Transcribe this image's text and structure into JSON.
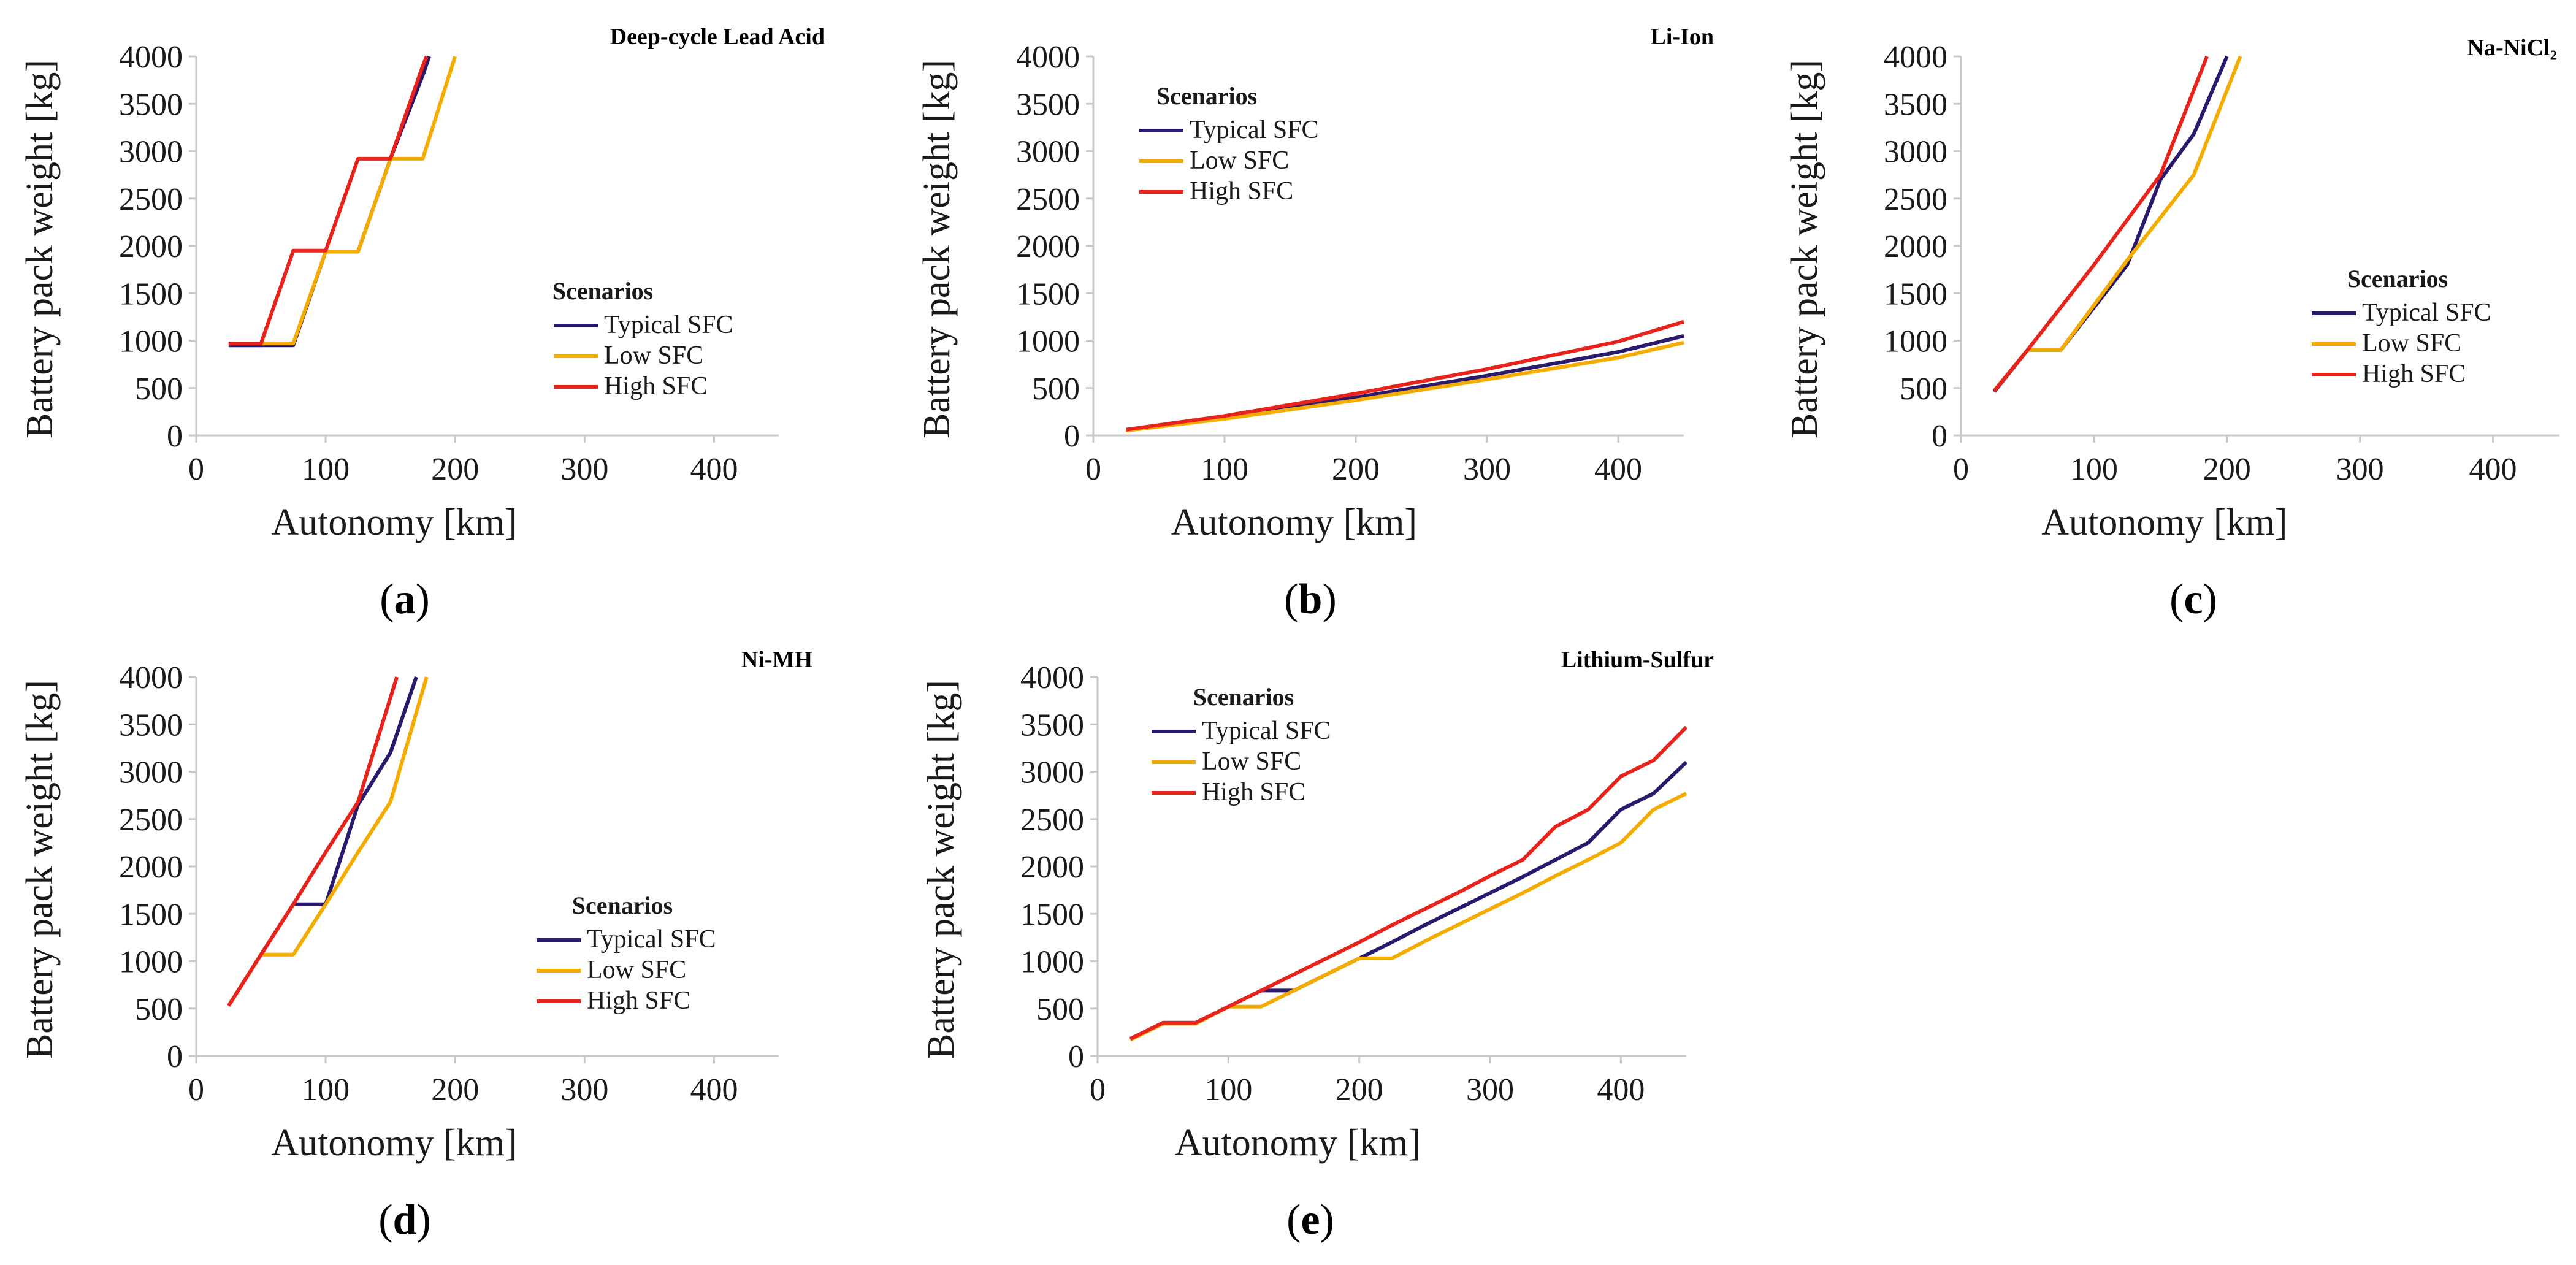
{
  "colors": {
    "typical": "#2a1a6e",
    "low": "#f5ac00",
    "high": "#e8231c",
    "axis": "#c8c8c8",
    "text": "#1a1a1a"
  },
  "shared": {
    "xlabel": "Autonomy [km]",
    "ylabel": "Battery pack weight [kg]",
    "legend_title": "Scenarios",
    "series_names": [
      "Typical SFC",
      "Low SFC",
      "High SFC"
    ]
  },
  "chart_data": [
    {
      "id": "a",
      "panel_label": "a",
      "type": "line",
      "title": "Deep-cycle Lead Acid",
      "xlabel": "Autonomy [km]",
      "ylabel": "Battery pack weight [kg]",
      "xlim": [
        0,
        450
      ],
      "ylim": [
        0,
        4000
      ],
      "xticks": [
        0,
        100,
        200,
        300,
        400
      ],
      "yticks": [
        0,
        500,
        1000,
        1500,
        2000,
        2500,
        3000,
        3500,
        4000
      ],
      "legend_position": "right-middle",
      "series": [
        {
          "name": "Typical SFC",
          "x": [
            25,
            50,
            75,
            100,
            125,
            150,
            175,
            180
          ],
          "y": [
            950,
            950,
            950,
            1940,
            1940,
            2920,
            3800,
            4000
          ]
        },
        {
          "name": "Low SFC",
          "x": [
            25,
            50,
            75,
            100,
            125,
            150,
            175,
            200
          ],
          "y": [
            970,
            970,
            970,
            1940,
            1940,
            2920,
            2920,
            4000
          ]
        },
        {
          "name": "High SFC",
          "x": [
            25,
            50,
            75,
            100,
            125,
            150,
            175,
            178
          ],
          "y": [
            970,
            970,
            1950,
            1950,
            2920,
            2920,
            3900,
            4000
          ]
        }
      ]
    },
    {
      "id": "b",
      "panel_label": "b",
      "type": "line",
      "title": "Li-Ion",
      "xlabel": "Autonomy [km]",
      "ylabel": "Battery pack weight [kg]",
      "xlim": [
        0,
        450
      ],
      "ylim": [
        0,
        4000
      ],
      "xticks": [
        0,
        100,
        200,
        300,
        400
      ],
      "yticks": [
        0,
        500,
        1000,
        1500,
        2000,
        2500,
        3000,
        3500,
        4000
      ],
      "legend_position": "top-left",
      "series": [
        {
          "name": "Typical SFC",
          "x": [
            25,
            100,
            200,
            300,
            400,
            450
          ],
          "y": [
            55,
            190,
            400,
            630,
            880,
            1050
          ]
        },
        {
          "name": "Low SFC",
          "x": [
            25,
            100,
            200,
            300,
            400,
            450
          ],
          "y": [
            50,
            175,
            370,
            590,
            820,
            980
          ]
        },
        {
          "name": "High SFC",
          "x": [
            25,
            100,
            200,
            300,
            400,
            450
          ],
          "y": [
            60,
            205,
            440,
            700,
            990,
            1200
          ]
        }
      ]
    },
    {
      "id": "c",
      "panel_label": "c",
      "type": "line",
      "title": "Na-NiCl₂",
      "xlabel": "Autonomy [km]",
      "ylabel": "Battery pack weight [kg]",
      "xlim": [
        0,
        450
      ],
      "ylim": [
        0,
        4000
      ],
      "xticks": [
        0,
        100,
        200,
        300,
        400
      ],
      "yticks": [
        0,
        500,
        1000,
        1500,
        2000,
        2500,
        3000,
        3500,
        4000
      ],
      "legend_position": "right-middle",
      "series": [
        {
          "name": "Typical SFC",
          "x": [
            25,
            50,
            75,
            125,
            150,
            175,
            200
          ],
          "y": [
            460,
            900,
            900,
            1800,
            2700,
            3180,
            4000
          ]
        },
        {
          "name": "Low SFC",
          "x": [
            25,
            50,
            75,
            125,
            175,
            210
          ],
          "y": [
            470,
            900,
            900,
            1850,
            2750,
            4000
          ]
        },
        {
          "name": "High SFC",
          "x": [
            25,
            50,
            100,
            150,
            185
          ],
          "y": [
            470,
            900,
            1800,
            2750,
            4000
          ]
        }
      ]
    },
    {
      "id": "d",
      "panel_label": "d",
      "type": "line",
      "title": "Ni-MH",
      "xlabel": "Autonomy [km]",
      "ylabel": "Battery pack weight [kg]",
      "xlim": [
        0,
        450
      ],
      "ylim": [
        0,
        4000
      ],
      "xticks": [
        0,
        100,
        200,
        300,
        400
      ],
      "yticks": [
        0,
        500,
        1000,
        1500,
        2000,
        2500,
        3000,
        3500,
        4000
      ],
      "legend_position": "right-middle",
      "series": [
        {
          "name": "Typical SFC",
          "x": [
            25,
            50,
            75,
            100,
            125,
            150,
            170
          ],
          "y": [
            530,
            1070,
            1600,
            1600,
            2650,
            3200,
            4000
          ]
        },
        {
          "name": "Low SFC",
          "x": [
            25,
            50,
            75,
            100,
            125,
            150,
            178
          ],
          "y": [
            530,
            1070,
            1070,
            1600,
            2150,
            2680,
            4000
          ]
        },
        {
          "name": "High SFC",
          "x": [
            25,
            50,
            75,
            100,
            125,
            155
          ],
          "y": [
            530,
            1070,
            1600,
            2150,
            2680,
            4000
          ]
        }
      ]
    },
    {
      "id": "e",
      "panel_label": "e",
      "type": "line",
      "title": "Lithium-Sulfur",
      "xlabel": "Autonomy [km]",
      "ylabel": "Battery pack weight [kg]",
      "xlim": [
        0,
        450
      ],
      "ylim": [
        0,
        4000
      ],
      "xticks": [
        0,
        100,
        200,
        300,
        400
      ],
      "yticks": [
        0,
        500,
        1000,
        1500,
        2000,
        2500,
        3000,
        3500,
        4000
      ],
      "legend_position": "top-left",
      "series": [
        {
          "name": "Typical SFC",
          "x": [
            25,
            50,
            75,
            100,
            125,
            150,
            175,
            200,
            225,
            250,
            275,
            300,
            325,
            350,
            375,
            400,
            425,
            450
          ],
          "y": [
            180,
            350,
            350,
            520,
            690,
            690,
            860,
            1030,
            1200,
            1380,
            1550,
            1720,
            1890,
            2070,
            2250,
            2600,
            2770,
            3100
          ]
        },
        {
          "name": "Low SFC",
          "x": [
            25,
            50,
            75,
            100,
            125,
            150,
            175,
            200,
            225,
            250,
            275,
            300,
            325,
            350,
            375,
            400,
            425,
            450
          ],
          "y": [
            170,
            340,
            340,
            520,
            520,
            690,
            860,
            1030,
            1030,
            1210,
            1380,
            1550,
            1720,
            1900,
            2070,
            2250,
            2600,
            2770
          ]
        },
        {
          "name": "High SFC",
          "x": [
            25,
            50,
            75,
            100,
            125,
            150,
            175,
            200,
            225,
            250,
            275,
            300,
            325,
            350,
            375,
            400,
            425,
            450
          ],
          "y": [
            180,
            350,
            350,
            520,
            690,
            860,
            1030,
            1200,
            1380,
            1550,
            1720,
            1900,
            2070,
            2420,
            2600,
            2950,
            3120,
            3470
          ]
        }
      ]
    }
  ]
}
